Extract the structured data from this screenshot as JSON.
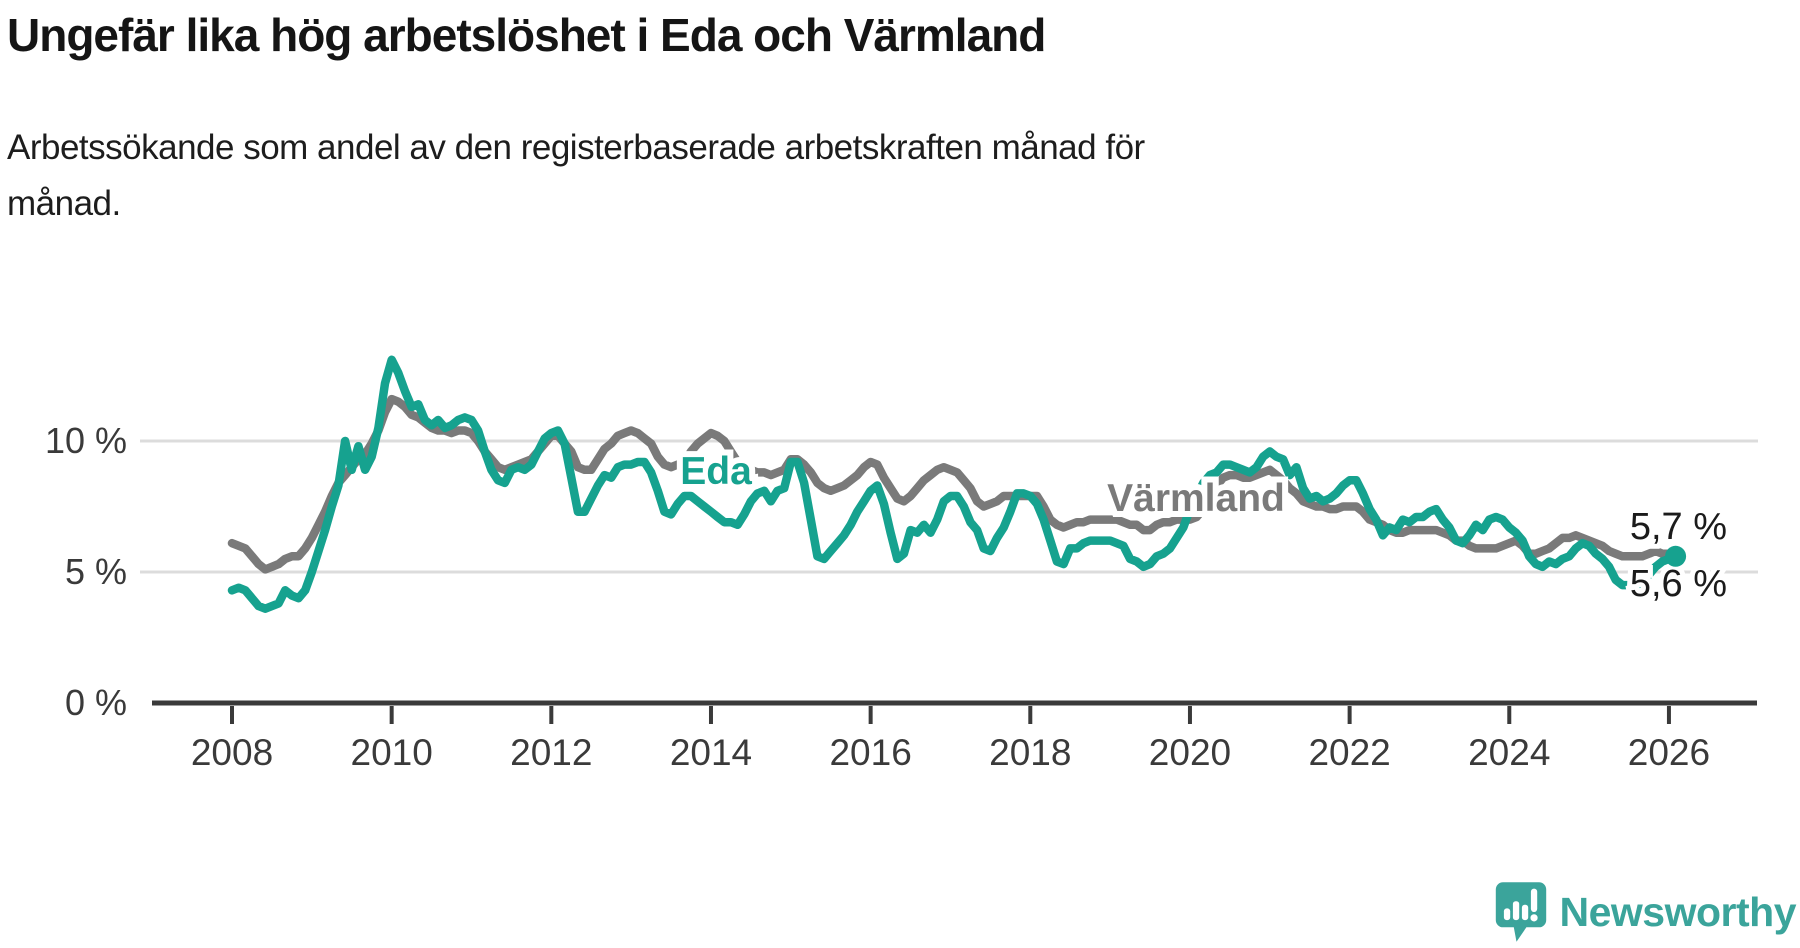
{
  "header": {
    "title": "Ungefär lika hög arbetslöshet i Eda och Värmland",
    "subtitle_line1": "Arbetssökande som andel av den registerbaserade arbetskraften månad för",
    "subtitle_line2": "månad."
  },
  "footer": {
    "logo_text": "Newsworthy",
    "logo_icon": "speech-bubble-bar-chart-exclamation"
  },
  "colors": {
    "eda": "#16a28f",
    "varmland": "#7a7a7a",
    "grid": "#dcdcdc",
    "axis": "#3a3a3a",
    "end_label_text": "#1b1b1b",
    "logo": "#3ba49b",
    "background": "#ffffff"
  },
  "chart_data": {
    "type": "line",
    "title": "Ungefär lika hög arbetslöshet i Eda och Värmland",
    "subtitle": "Arbetssökande som andel av den registerbaserade arbetskraften månad för månad.",
    "unit": "%",
    "frequency": "monthly",
    "x_start": "2008-01",
    "x_end": "2026-02",
    "ylim": [
      0,
      13.6
    ],
    "grid": "horizontal",
    "y_gridlines": [
      {
        "value": 10,
        "label": "10 %"
      },
      {
        "value": 5,
        "label": "5 %"
      },
      {
        "value": 0,
        "label": "0 %"
      }
    ],
    "x_ticks": [
      {
        "year": 2008,
        "label": "2008"
      },
      {
        "year": 2010,
        "label": "2010"
      },
      {
        "year": 2012,
        "label": "2012"
      },
      {
        "year": 2014,
        "label": "2014"
      },
      {
        "year": 2016,
        "label": "2016"
      },
      {
        "year": 2018,
        "label": "2018"
      },
      {
        "year": 2020,
        "label": "2020"
      },
      {
        "year": 2022,
        "label": "2022"
      },
      {
        "year": 2024,
        "label": "2024"
      },
      {
        "year": 2026,
        "label": "2026"
      }
    ],
    "series": [
      {
        "name": "Värmland",
        "inline_label": "Värmland",
        "end_label": "5,7 %",
        "last_value": 5.7,
        "color": "#7a7a7a",
        "values": [
          6.1,
          6.0,
          5.9,
          5.6,
          5.3,
          5.1,
          5.2,
          5.3,
          5.5,
          5.6,
          5.6,
          5.9,
          6.3,
          6.8,
          7.3,
          7.9,
          8.4,
          8.7,
          9.0,
          9.3,
          9.5,
          9.9,
          10.4,
          11.1,
          11.6,
          11.5,
          11.3,
          11.0,
          10.9,
          10.7,
          10.5,
          10.4,
          10.4,
          10.3,
          10.4,
          10.4,
          10.3,
          10.0,
          9.6,
          9.3,
          9.0,
          8.9,
          9.0,
          9.1,
          9.2,
          9.3,
          9.6,
          9.9,
          10.2,
          10.2,
          9.9,
          9.6,
          9.0,
          8.9,
          8.9,
          9.3,
          9.7,
          9.9,
          10.2,
          10.3,
          10.4,
          10.3,
          10.1,
          9.9,
          9.4,
          9.1,
          9.0,
          9.1,
          9.2,
          9.6,
          9.9,
          10.1,
          10.3,
          10.2,
          10.0,
          9.6,
          9.2,
          9.0,
          8.9,
          8.8,
          8.8,
          8.7,
          8.8,
          8.9,
          9.3,
          9.3,
          9.1,
          8.8,
          8.4,
          8.2,
          8.1,
          8.2,
          8.3,
          8.5,
          8.7,
          9.0,
          9.2,
          9.1,
          8.6,
          8.2,
          7.8,
          7.7,
          7.9,
          8.2,
          8.5,
          8.7,
          8.9,
          9.0,
          8.9,
          8.8,
          8.5,
          8.2,
          7.7,
          7.5,
          7.6,
          7.7,
          7.9,
          7.9,
          7.9,
          7.9,
          7.9,
          7.9,
          7.5,
          7.0,
          6.8,
          6.7,
          6.8,
          6.9,
          6.9,
          7.0,
          7.0,
          7.0,
          7.0,
          7.0,
          6.9,
          6.8,
          6.8,
          6.6,
          6.6,
          6.8,
          6.9,
          6.9,
          7.0,
          7.0,
          7.0,
          7.1,
          7.4,
          7.9,
          8.3,
          8.6,
          8.7,
          8.7,
          8.6,
          8.6,
          8.7,
          8.8,
          8.9,
          8.7,
          8.5,
          8.2,
          8.0,
          7.7,
          7.6,
          7.5,
          7.5,
          7.4,
          7.4,
          7.5,
          7.5,
          7.5,
          7.3,
          7.0,
          6.9,
          6.8,
          6.6,
          6.5,
          6.5,
          6.6,
          6.6,
          6.6,
          6.6,
          6.6,
          6.5,
          6.4,
          6.2,
          6.2,
          6.0,
          5.9,
          5.9,
          5.9,
          5.9,
          6.0,
          6.1,
          6.2,
          6.0,
          5.7,
          5.7,
          5.8,
          5.9,
          6.1,
          6.3,
          6.3,
          6.4,
          6.3,
          6.2,
          6.1,
          6.0,
          5.8,
          5.7,
          5.6,
          5.6,
          5.6,
          5.6,
          5.7,
          5.8,
          5.7,
          5.7,
          5.7
        ]
      },
      {
        "name": "Eda",
        "inline_label": "Eda",
        "end_label": "5,6 %",
        "last_value": 5.6,
        "color": "#16a28f",
        "values": [
          4.3,
          4.4,
          4.3,
          4.0,
          3.7,
          3.6,
          3.7,
          3.8,
          4.3,
          4.1,
          4.0,
          4.3,
          5.0,
          5.8,
          6.6,
          7.5,
          8.3,
          10.0,
          8.9,
          9.8,
          8.9,
          9.4,
          10.5,
          12.2,
          13.1,
          12.6,
          11.9,
          11.3,
          11.4,
          10.8,
          10.6,
          10.8,
          10.5,
          10.6,
          10.8,
          10.9,
          10.8,
          10.4,
          9.6,
          8.9,
          8.5,
          8.4,
          8.9,
          9.0,
          8.9,
          9.1,
          9.6,
          10.1,
          10.3,
          10.4,
          9.9,
          8.6,
          7.3,
          7.3,
          7.8,
          8.3,
          8.7,
          8.6,
          9.0,
          9.1,
          9.1,
          9.2,
          9.2,
          8.8,
          8.1,
          7.3,
          7.2,
          7.6,
          7.9,
          7.9,
          7.7,
          7.5,
          7.3,
          7.1,
          6.9,
          6.9,
          6.8,
          7.2,
          7.7,
          8.0,
          8.1,
          7.7,
          8.1,
          8.2,
          9.2,
          9.2,
          8.4,
          7.0,
          5.6,
          5.5,
          5.8,
          6.1,
          6.4,
          6.8,
          7.3,
          7.7,
          8.1,
          8.3,
          7.6,
          6.5,
          5.5,
          5.7,
          6.6,
          6.5,
          6.8,
          6.5,
          7.0,
          7.7,
          7.9,
          7.9,
          7.5,
          6.9,
          6.6,
          5.9,
          5.8,
          6.3,
          6.7,
          7.3,
          8.0,
          8.0,
          7.9,
          7.6,
          7.0,
          6.2,
          5.4,
          5.3,
          5.9,
          5.9,
          6.1,
          6.2,
          6.2,
          6.2,
          6.2,
          6.1,
          6.0,
          5.5,
          5.4,
          5.2,
          5.3,
          5.6,
          5.7,
          5.9,
          6.3,
          6.7,
          7.4,
          7.9,
          8.4,
          8.7,
          8.8,
          9.1,
          9.1,
          9.0,
          8.9,
          8.8,
          9.0,
          9.4,
          9.6,
          9.4,
          9.3,
          8.7,
          9.0,
          8.2,
          7.8,
          7.9,
          7.7,
          7.8,
          8.0,
          8.3,
          8.5,
          8.5,
          8.0,
          7.4,
          7.0,
          6.4,
          6.7,
          6.6,
          7.0,
          6.9,
          7.1,
          7.1,
          7.3,
          7.4,
          7.0,
          6.7,
          6.2,
          6.1,
          6.4,
          6.8,
          6.6,
          7.0,
          7.1,
          7.0,
          6.7,
          6.5,
          6.2,
          5.6,
          5.3,
          5.2,
          5.4,
          5.3,
          5.5,
          5.6,
          5.9,
          6.1,
          6.0,
          5.7,
          5.5,
          5.2,
          4.7,
          4.5,
          4.5,
          4.5,
          4.6,
          4.9,
          5.2,
          5.4,
          5.5,
          5.6
        ]
      }
    ]
  }
}
